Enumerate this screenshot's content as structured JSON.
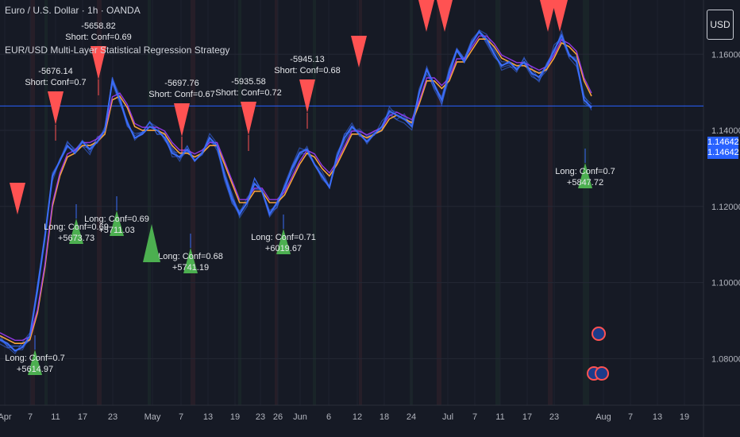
{
  "header": {
    "symbol": "Euro / U.S. Dollar · 1h · OANDA",
    "strategy": "EUR/USD Multi-Layer Statistical Regression Strategy"
  },
  "currency_button": "USD",
  "current_price": "1.14642",
  "price_badge_sub": "1.14642",
  "colors": {
    "background": "#161a25",
    "price": "#3b6df7",
    "fast_ma": "#f7a33b",
    "slow_ma": "#a03bf7",
    "long_signal": "#4caf50",
    "short_signal": "#ff5252",
    "price_line": "#2962ff"
  },
  "y_axis": {
    "ticks": [
      "1.16000",
      "1.14000",
      "1.12000",
      "1.10000",
      "1.08000"
    ]
  },
  "x_axis": {
    "ticks": [
      "Apr",
      "7",
      "11",
      "17",
      "23",
      "May",
      "7",
      "13",
      "19",
      "23",
      "26",
      "Jun",
      "6",
      "12",
      "18",
      "24",
      "Jul",
      "7",
      "11",
      "17",
      "23",
      "Aug",
      "7",
      "13",
      "19"
    ]
  },
  "signals": {
    "long": [
      {
        "label": "Long: Conf=0.7",
        "pnl": "+5614.97"
      },
      {
        "label": "Long: Conf=0.69",
        "pnl": "+5673.73"
      },
      {
        "label": "Long: Conf=0.69",
        "pnl": "+5711.03"
      },
      {
        "label": "Long: Conf=0.68",
        "pnl": "+5741.19"
      },
      {
        "label": "Long: Conf=0.71",
        "pnl": "+6019.67"
      },
      {
        "label": "Long: Conf=0.7",
        "pnl": "+5847.72"
      }
    ],
    "short": [
      {
        "label": "Short: Conf=0.7",
        "pnl": "-5676.14"
      },
      {
        "label": "Short: Conf=0.69",
        "pnl": "-5658.82"
      },
      {
        "label": "Short: Conf=0.67",
        "pnl": "-5697.76"
      },
      {
        "label": "Short: Conf=0.72",
        "pnl": "-5935.58"
      },
      {
        "label": "Short: Conf=0.68",
        "pnl": "-5945.13"
      }
    ]
  },
  "chart_data": {
    "type": "line",
    "ylim": [
      1.07,
      1.168
    ],
    "series": [
      {
        "values": [
          1.085,
          1.084,
          1.082,
          1.083,
          1.086,
          1.098,
          1.112,
          1.128,
          1.132,
          1.136,
          1.134,
          1.137,
          1.135,
          1.137,
          1.14,
          1.153,
          1.148,
          1.142,
          1.138,
          1.139,
          1.141,
          1.14,
          1.138,
          1.134,
          1.133,
          1.135,
          1.132,
          1.134,
          1.138,
          1.136,
          1.128,
          1.122,
          1.118,
          1.121,
          1.126,
          1.124,
          1.118,
          1.121,
          1.125,
          1.13,
          1.134,
          1.135,
          1.131,
          1.128,
          1.125,
          1.133,
          1.138,
          1.141,
          1.139,
          1.137,
          1.139,
          1.141,
          1.145,
          1.144,
          1.143,
          1.141,
          1.15,
          1.156,
          1.152,
          1.148,
          1.155,
          1.161,
          1.158,
          1.163,
          1.166,
          1.164,
          1.16,
          1.157,
          1.158,
          1.156,
          1.158,
          1.155,
          1.154,
          1.157,
          1.161,
          1.165,
          1.16,
          1.158,
          1.148,
          1.146
        ]
      },
      {
        "values": [
          1.086,
          1.085,
          1.084,
          1.084,
          1.085,
          1.092,
          1.104,
          1.12,
          1.128,
          1.133,
          1.134,
          1.136,
          1.136,
          1.137,
          1.139,
          1.148,
          1.149,
          1.146,
          1.141,
          1.14,
          1.14,
          1.14,
          1.139,
          1.136,
          1.134,
          1.134,
          1.133,
          1.134,
          1.136,
          1.136,
          1.131,
          1.126,
          1.121,
          1.121,
          1.124,
          1.124,
          1.121,
          1.121,
          1.123,
          1.127,
          1.131,
          1.134,
          1.133,
          1.13,
          1.128,
          1.131,
          1.135,
          1.139,
          1.139,
          1.138,
          1.139,
          1.14,
          1.143,
          1.144,
          1.143,
          1.142,
          1.147,
          1.153,
          1.153,
          1.151,
          1.153,
          1.158,
          1.158,
          1.161,
          1.164,
          1.164,
          1.162,
          1.159,
          1.158,
          1.157,
          1.157,
          1.156,
          1.155,
          1.156,
          1.159,
          1.163,
          1.162,
          1.16,
          1.153,
          1.149
        ]
      }
    ]
  }
}
